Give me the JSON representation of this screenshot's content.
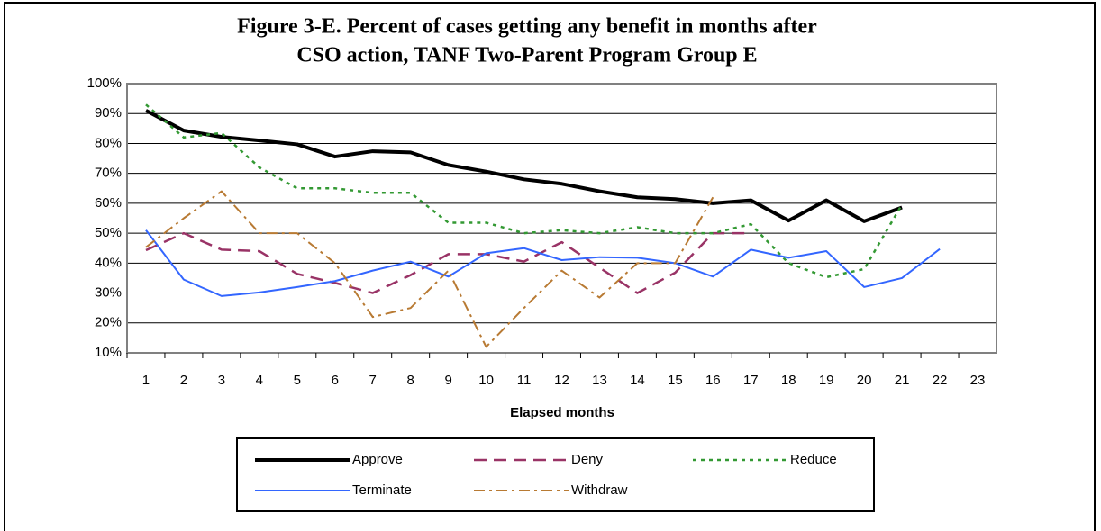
{
  "chart_data": {
    "type": "line",
    "title": [
      "Figure 3-E.  Percent of cases getting any benefit in months after",
      "CSO action, TANF Two-Parent Program Group E"
    ],
    "x_label": "Elapsed months",
    "categories": [
      "1",
      "2",
      "3",
      "4",
      "5",
      "6",
      "7",
      "8",
      "9",
      "10",
      "11",
      "12",
      "13",
      "14",
      "15",
      "16",
      "17",
      "18",
      "19",
      "20",
      "21",
      "22",
      "23"
    ],
    "ylim": [
      10,
      100
    ],
    "yticks": [
      {
        "value": 10,
        "label": "10%"
      },
      {
        "value": 20,
        "label": "20%"
      },
      {
        "value": 30,
        "label": "30%"
      },
      {
        "value": 40,
        "label": "40%"
      },
      {
        "value": 50,
        "label": "50%"
      },
      {
        "value": 60,
        "label": "60%"
      },
      {
        "value": 70,
        "label": "70%"
      },
      {
        "value": 80,
        "label": "80%"
      },
      {
        "value": 90,
        "label": "90%"
      },
      {
        "value": 100,
        "label": "100%"
      }
    ],
    "grid": true,
    "series": [
      {
        "name": "Approve",
        "color": "#000000",
        "width": 4,
        "dash": "none",
        "values": [
          91,
          84.3,
          82.2,
          81,
          79.7,
          75.6,
          77.4,
          77,
          72.8,
          70.6,
          68,
          66.5,
          64,
          62,
          61.4,
          60,
          61,
          54.2,
          61,
          54,
          58.6,
          null,
          null
        ]
      },
      {
        "name": "Deny",
        "color": "#993366",
        "width": 2.5,
        "dash": "14,8",
        "values": [
          44.3,
          50,
          44.5,
          44,
          36.4,
          33.4,
          30,
          36,
          43,
          43,
          40.5,
          47,
          38.5,
          30,
          36.8,
          50,
          50,
          null,
          null,
          null,
          null,
          null,
          null
        ]
      },
      {
        "name": "Reduce",
        "color": "#339933",
        "width": 2.5,
        "dash": "4,5",
        "values": [
          93,
          82,
          83.5,
          72,
          65,
          65,
          63.5,
          63.5,
          53.5,
          53.5,
          50,
          51,
          50,
          52,
          50,
          50,
          53,
          40,
          35.3,
          38,
          59.6,
          null,
          null
        ]
      },
      {
        "name": "Terminate",
        "color": "#3366ff",
        "width": 2,
        "dash": "none",
        "values": [
          51,
          34.5,
          29,
          30.2,
          32,
          34,
          37.5,
          40.5,
          35.5,
          43.3,
          45,
          41,
          42,
          41.8,
          40,
          35.5,
          44.5,
          41.8,
          44,
          32,
          35,
          44.7,
          null
        ]
      },
      {
        "name": "Withdraw",
        "color": "#b87a33",
        "width": 2,
        "dash": "12,5,3,5",
        "values": [
          45.3,
          55,
          64,
          50,
          50,
          40,
          22,
          25,
          37.5,
          12,
          25,
          37.5,
          28.5,
          40,
          40,
          62,
          null,
          null,
          null,
          null,
          null,
          null,
          null
        ]
      }
    ]
  }
}
